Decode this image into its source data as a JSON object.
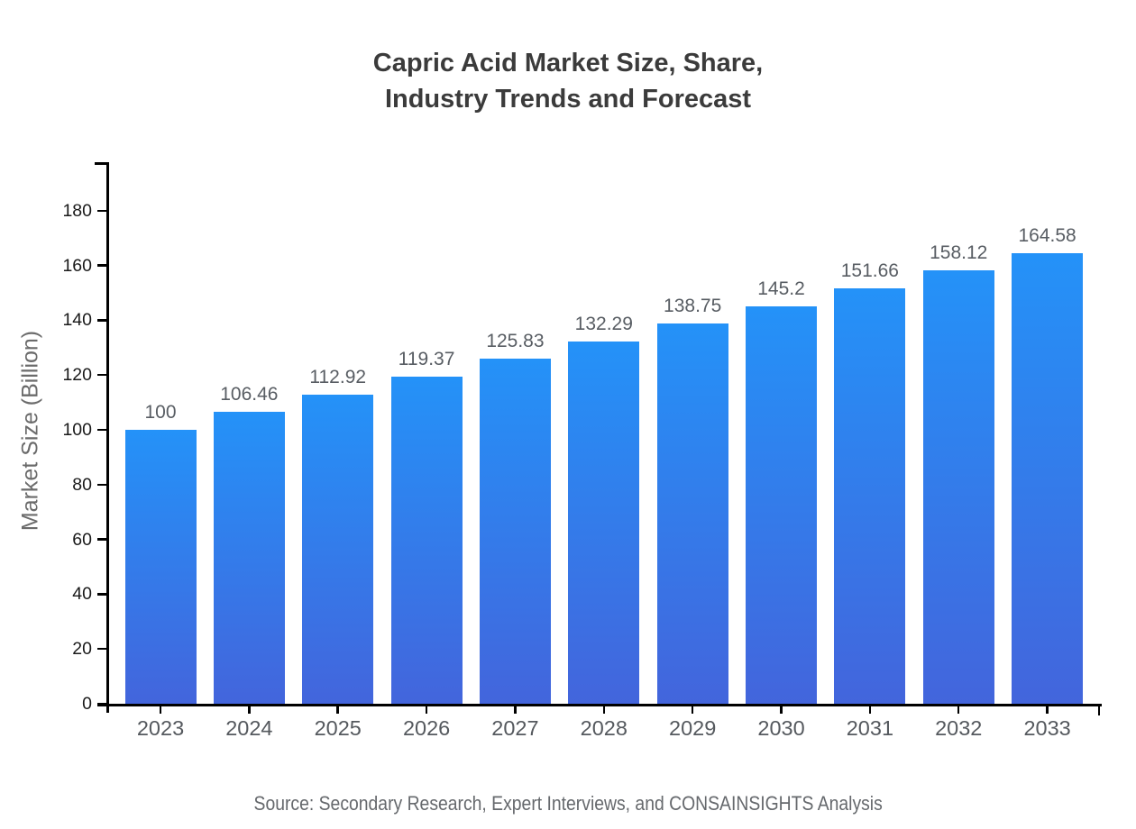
{
  "title": "Capric Acid Market Size, Share,\nIndustry Trends and Forecast",
  "source": "Source: Secondary Research, Expert Interviews, and CONSAINSIGHTS Analysis",
  "colors": {
    "bar_gradient_top": "#2492f8",
    "bar_gradient_bottom": "#4365dc",
    "axis": "#000000",
    "title_text": "#3b3b3b",
    "value_label_text": "#585d63",
    "tick_label_text": "#55595e",
    "background": "#ffffff"
  },
  "chart_data": {
    "type": "bar",
    "title": "Capric Acid Market Size, Share, Industry Trends and Forecast",
    "xlabel": "",
    "ylabel": "Market Size (Billion)",
    "categories": [
      "2023",
      "2024",
      "2025",
      "2026",
      "2027",
      "2028",
      "2029",
      "2030",
      "2031",
      "2032",
      "2033"
    ],
    "values": [
      100,
      106.46,
      112.92,
      119.37,
      125.83,
      132.29,
      138.75,
      145.2,
      151.66,
      158.12,
      164.58
    ],
    "value_labels": [
      "100",
      "106.46",
      "112.92",
      "119.37",
      "125.83",
      "132.29",
      "138.75",
      "145.2",
      "151.66",
      "158.12",
      "164.58"
    ],
    "yticks": [
      0,
      20,
      40,
      60,
      80,
      100,
      120,
      140,
      160,
      180
    ],
    "ylim": [
      0,
      197.7
    ],
    "grid": false,
    "legend": "none"
  }
}
